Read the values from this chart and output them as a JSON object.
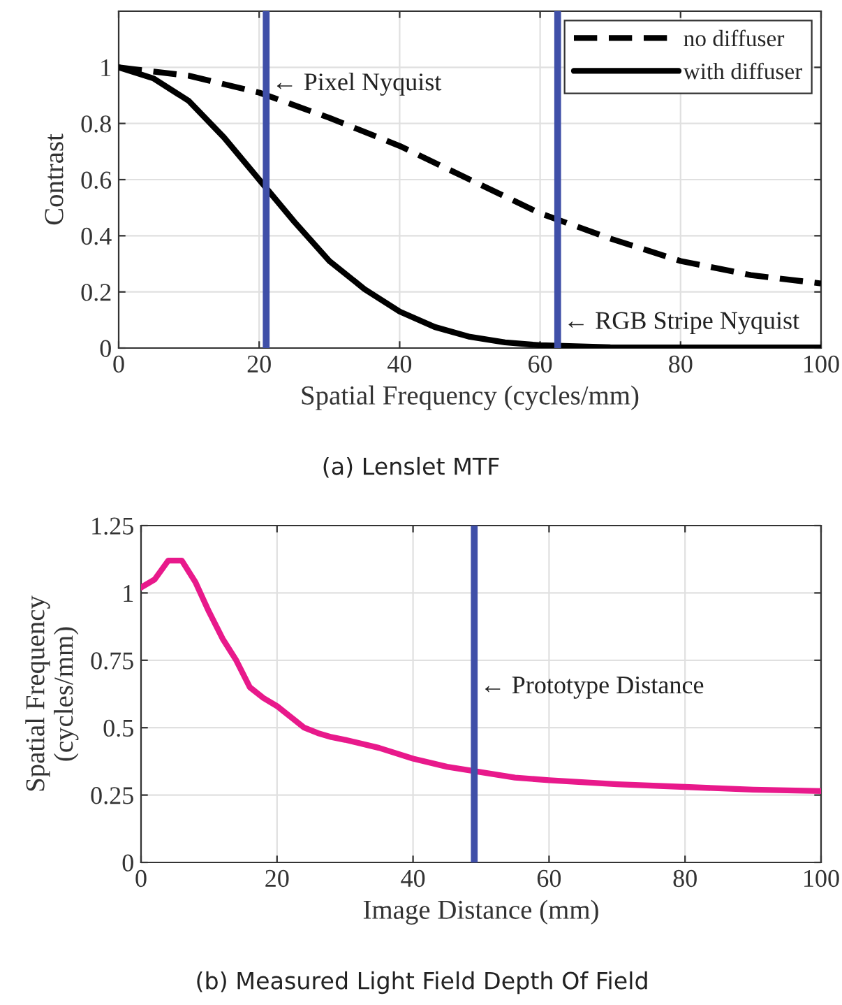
{
  "chart_data": [
    {
      "type": "line",
      "title": "(a) Lenslet MTF",
      "xlabel": "Spatial Frequency (cycles/mm)",
      "ylabel": "Contrast",
      "xlim": [
        0,
        100
      ],
      "xticks": [
        0,
        20,
        40,
        60,
        80,
        100
      ],
      "ylim": [
        0,
        1.2
      ],
      "yticks": [
        0,
        0.2,
        0.4,
        0.6,
        0.8,
        1
      ],
      "grid": true,
      "legend": "top right",
      "series": [
        {
          "name": "no diffuser",
          "color": "#000000",
          "line_style": "dashed",
          "x": [
            0,
            10,
            20,
            30,
            40,
            50,
            60,
            70,
            80,
            90,
            100
          ],
          "values": [
            1,
            0.97,
            0.91,
            0.82,
            0.72,
            0.6,
            0.48,
            0.39,
            0.31,
            0.26,
            0.23
          ]
        },
        {
          "name": "with diffuser",
          "color": "#000000",
          "line_style": "solid",
          "x": [
            0,
            5,
            10,
            15,
            20,
            25,
            30,
            35,
            40,
            45,
            50,
            55,
            60,
            70,
            80,
            100
          ],
          "values": [
            1,
            0.96,
            0.88,
            0.75,
            0.6,
            0.45,
            0.31,
            0.21,
            0.13,
            0.075,
            0.04,
            0.02,
            0.01,
            0.003,
            0.002,
            0.002
          ]
        }
      ],
      "ref_lines": [
        {
          "axis": "x",
          "value": 21,
          "color": "#3f4fa8"
        },
        {
          "axis": "x",
          "value": 62.5,
          "color": "#3f4fa8"
        }
      ],
      "annotations": [
        {
          "text": "← Pixel Nyquist",
          "x": 21,
          "y": 0.94
        },
        {
          "text": "← RGB Stripe Nyquist",
          "x": 62.5,
          "y": 0.09
        }
      ]
    },
    {
      "type": "line",
      "title": "(b) Measured Light Field Depth Of Field",
      "xlabel": "Image Distance (mm)",
      "ylabel": "Spatial Frequency\n(cycles/mm)",
      "xlim": [
        0,
        100
      ],
      "xticks": [
        0,
        20,
        40,
        60,
        80,
        100
      ],
      "ylim": [
        0,
        1.25
      ],
      "yticks": [
        0,
        0.25,
        0.5,
        0.75,
        1,
        1.25
      ],
      "grid": true,
      "series": [
        {
          "color": "#e8198b",
          "line_style": "solid",
          "x": [
            0,
            2,
            4,
            6,
            8,
            10,
            12,
            14,
            16,
            18,
            20,
            22,
            24,
            26,
            28,
            30,
            35,
            40,
            45,
            50,
            55,
            60,
            70,
            80,
            90,
            100
          ],
          "values": [
            1.02,
            1.05,
            1.12,
            1.12,
            1.04,
            0.93,
            0.83,
            0.75,
            0.65,
            0.61,
            0.58,
            0.54,
            0.5,
            0.48,
            0.465,
            0.455,
            0.425,
            0.385,
            0.355,
            0.335,
            0.315,
            0.305,
            0.29,
            0.28,
            0.27,
            0.265
          ]
        }
      ],
      "ref_lines": [
        {
          "axis": "x",
          "value": 49,
          "color": "#3f4fa8"
        }
      ],
      "annotations": [
        {
          "text": "← Prototype Distance",
          "x": 49,
          "y": 0.65
        }
      ]
    }
  ]
}
